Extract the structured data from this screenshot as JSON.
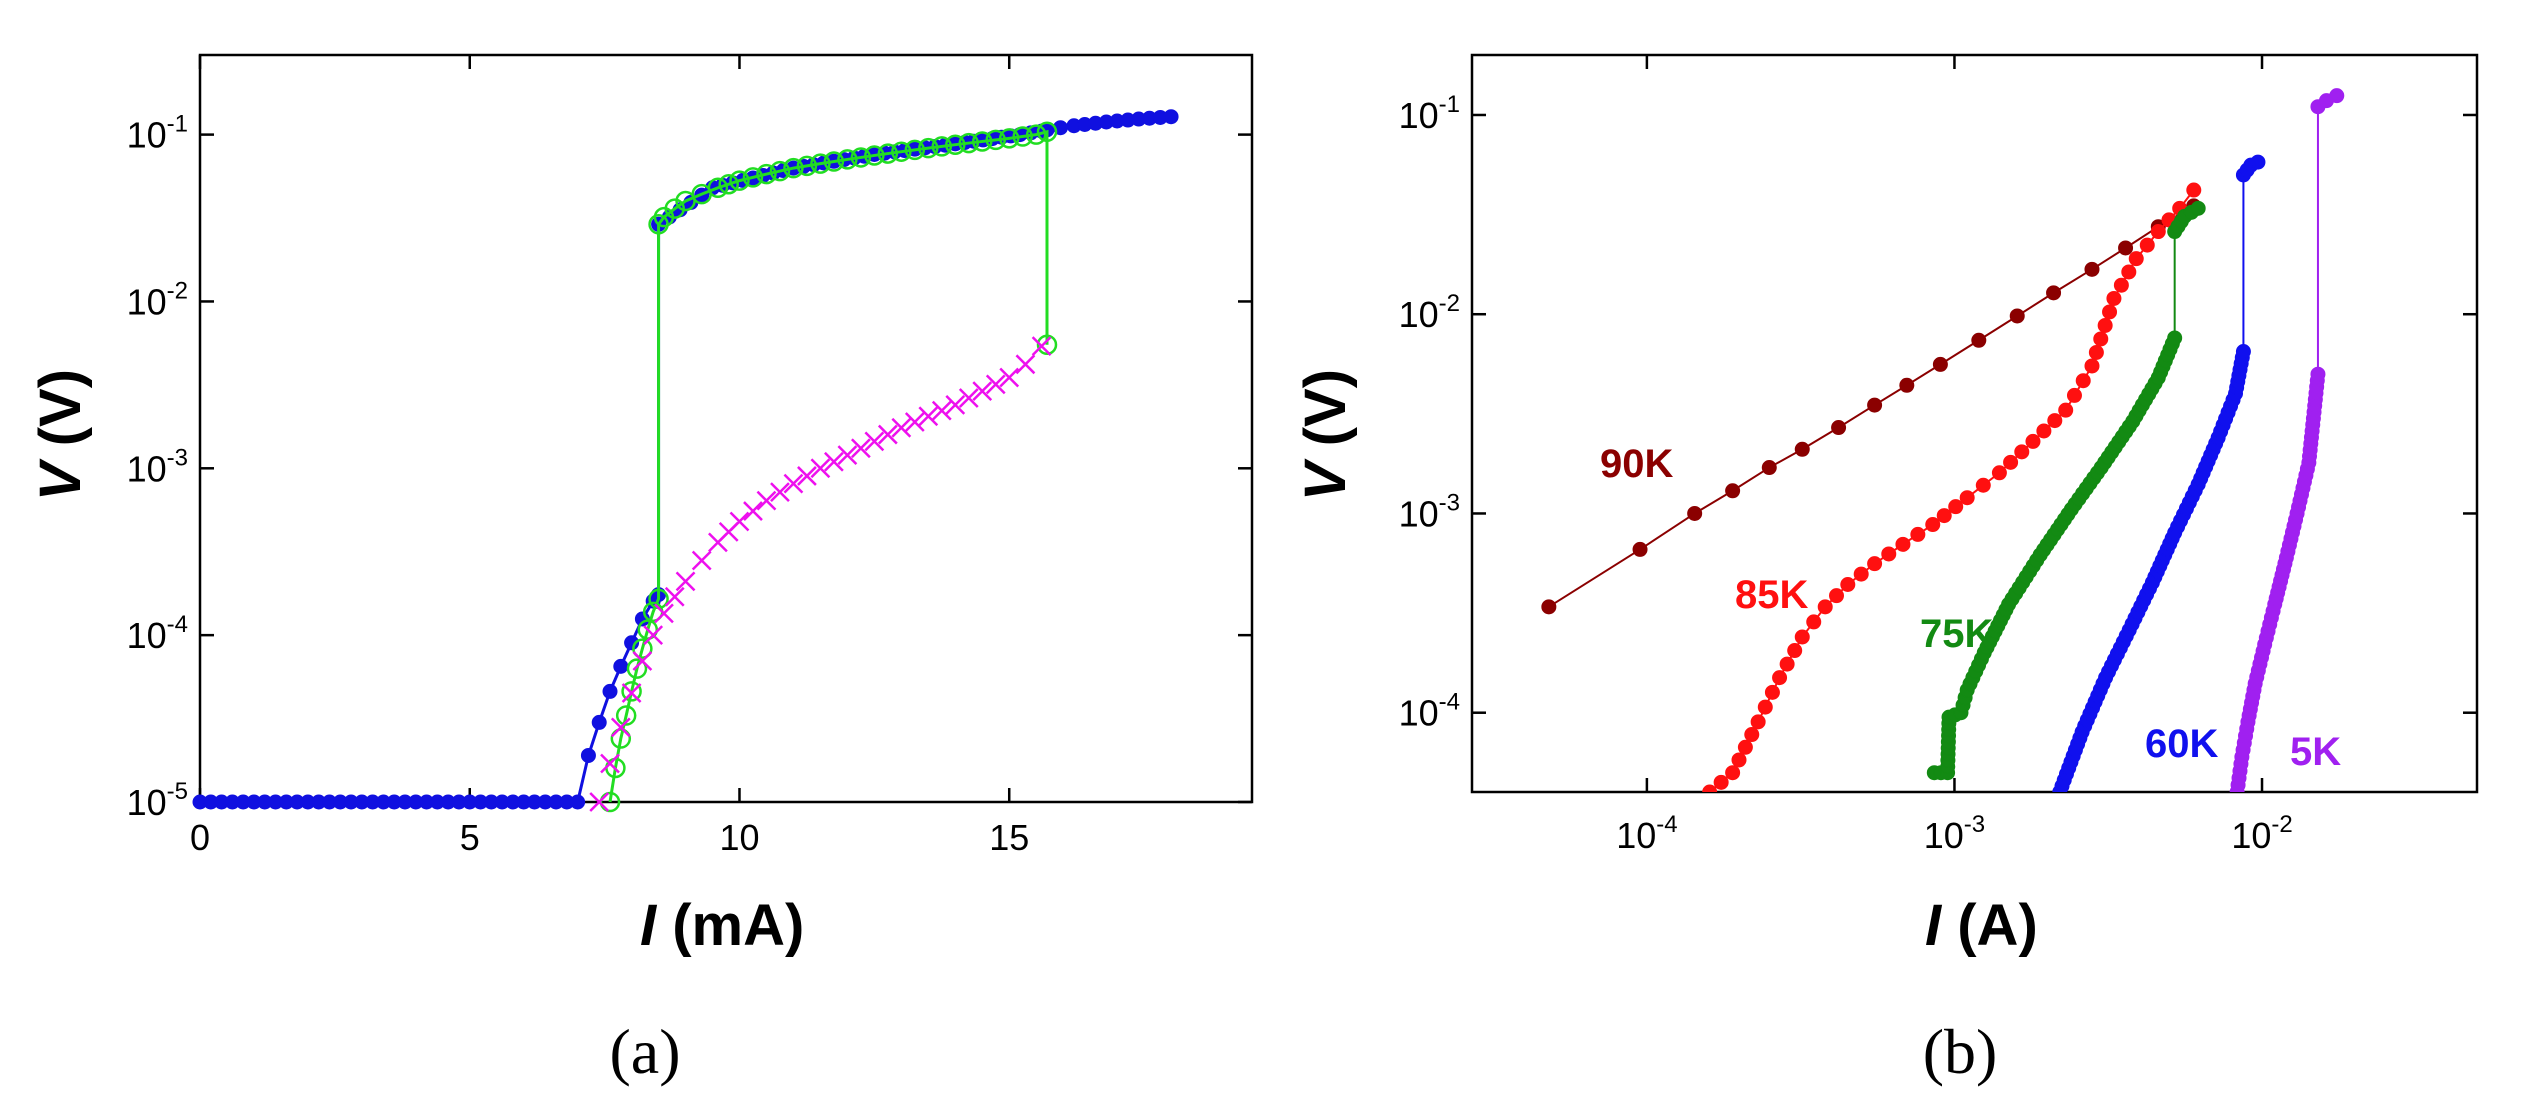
{
  "chart_data": [
    {
      "panel_label": "(a)",
      "type": "scatter",
      "xlabel": {
        "var": "I",
        "unit": " (mA)"
      },
      "ylabel": {
        "var": "V",
        "unit": " (V)"
      },
      "xscale": "linear",
      "yscale": "log",
      "xlim": [
        0,
        19.5
      ],
      "ylim": [
        1e-05,
        0.3
      ],
      "xticks": [
        "0",
        "5",
        "10",
        "15"
      ],
      "xtick_values": [
        0,
        5,
        10,
        15
      ],
      "yticks": [
        {
          "base": "10",
          "exp": "-5",
          "value": 1e-05
        },
        {
          "base": "10",
          "exp": "-4",
          "value": 0.0001
        },
        {
          "base": "10",
          "exp": "-3",
          "value": 0.001
        },
        {
          "base": "10",
          "exp": "-2",
          "value": 0.01
        },
        {
          "base": "10",
          "exp": "-1",
          "value": 0.1
        }
      ],
      "grid": false,
      "colors": {
        "blue": "#1010e0",
        "green": "#22dd22",
        "magenta": "#ee10ee"
      },
      "series": [
        {
          "color": "#1010e0",
          "marker": "filled-circle",
          "connected": true,
          "x": [
            0,
            1,
            2,
            3,
            4,
            5,
            6,
            7,
            7.2,
            7.4,
            7.6,
            7.8,
            8.0,
            8.2,
            8.4,
            8.5,
            8.5,
            9.5,
            11,
            12.5,
            14,
            15.2,
            15.6,
            15.7,
            15.7,
            16.2,
            16.8,
            17.4,
            18.0
          ],
          "y": [
            1e-05,
            1e-05,
            1e-05,
            1e-05,
            1e-05,
            1e-05,
            1e-05,
            1e-05,
            1.9e-05,
            3e-05,
            4.6e-05,
            6.5e-05,
            9e-05,
            0.000125,
            0.00016,
            0.000175,
            0.029,
            0.048,
            0.063,
            0.076,
            0.088,
            0.1,
            0.105,
            0.107,
            0.107,
            0.113,
            0.119,
            0.124,
            0.128
          ]
        },
        {
          "color": "#22dd22",
          "marker": "open-circle",
          "connected": true,
          "x": [
            7.6,
            7.7,
            7.8,
            7.9,
            8.0,
            8.1,
            8.2,
            8.3,
            8.4,
            8.5,
            8.5,
            8.6,
            8.8,
            9.0,
            9.3,
            9.6,
            10.0,
            10.5,
            11,
            11.5,
            12,
            12.5,
            13,
            13.5,
            14,
            14.5,
            15,
            15.5,
            15.7,
            15.7
          ],
          "y": [
            1e-05,
            1.6e-05,
            2.4e-05,
            3.3e-05,
            4.6e-05,
            6.3e-05,
            8.3e-05,
            0.000108,
            0.000138,
            0.000165,
            0.029,
            0.032,
            0.036,
            0.04,
            0.044,
            0.048,
            0.053,
            0.058,
            0.063,
            0.067,
            0.071,
            0.075,
            0.079,
            0.083,
            0.087,
            0.091,
            0.095,
            0.1,
            0.104,
            0.0055
          ]
        },
        {
          "color": "#ee10ee",
          "marker": "cross",
          "connected": false,
          "x": [
            7.4,
            7.6,
            7.8,
            8.0,
            8.2,
            8.4,
            8.6,
            8.8,
            9.0,
            9.3,
            9.6,
            10.0,
            10.5,
            11,
            11.5,
            12,
            12.5,
            13,
            13.5,
            14,
            14.5,
            15,
            15.3,
            15.6
          ],
          "y": [
            1e-05,
            1.7e-05,
            2.8e-05,
            4.5e-05,
            7e-05,
            0.0001,
            0.000135,
            0.00017,
            0.00021,
            0.00028,
            0.00036,
            0.00048,
            0.00064,
            0.00081,
            0.001,
            0.0012,
            0.00145,
            0.00175,
            0.00205,
            0.0024,
            0.0029,
            0.0035,
            0.0042,
            0.0054
          ]
        }
      ]
    },
    {
      "panel_label": "(b)",
      "type": "scatter",
      "xlabel": {
        "var": "I",
        "unit": " (A)"
      },
      "ylabel": {
        "var": "V",
        "unit": " (V)"
      },
      "xscale": "log",
      "yscale": "log",
      "xlim": [
        2.7e-05,
        0.05
      ],
      "ylim": [
        4e-05,
        0.2
      ],
      "xticks": [
        {
          "base": "10",
          "exp": "-4",
          "value": 0.0001
        },
        {
          "base": "10",
          "exp": "-3",
          "value": 0.001
        },
        {
          "base": "10",
          "exp": "-2",
          "value": 0.01
        }
      ],
      "yticks": [
        {
          "base": "10",
          "exp": "-4",
          "value": 0.0001
        },
        {
          "base": "10",
          "exp": "-3",
          "value": 0.001
        },
        {
          "base": "10",
          "exp": "-2",
          "value": 0.01
        },
        {
          "base": "10",
          "exp": "-1",
          "value": 0.1
        }
      ],
      "grid": false,
      "series": [
        {
          "color": "#8b0000",
          "marker": "filled-circle",
          "label": "90K",
          "x": [
            4.8e-05,
            9.5e-05,
            0.000143,
            0.00019,
            0.00025,
            0.00032,
            0.00042,
            0.00055,
            0.0007,
            0.0009,
            0.0012,
            0.0016,
            0.0021,
            0.0028,
            0.0036,
            0.0046,
            0.006
          ],
          "y": [
            0.00034,
            0.00066,
            0.001,
            0.0013,
            0.0017,
            0.0021,
            0.0027,
            0.0035,
            0.0044,
            0.0056,
            0.0074,
            0.0098,
            0.0128,
            0.0168,
            0.0215,
            0.0275,
            0.035
          ]
        },
        {
          "color": "#ff1010",
          "marker": "filled-circle",
          "label": "85K",
          "x": [
            0.00016,
            0.00019,
            0.00023,
            0.00027,
            0.00032,
            0.00038,
            0.00045,
            0.00055,
            0.00068,
            0.00085,
            0.0011,
            0.0014,
            0.0018,
            0.0023,
            0.0028,
            0.0033,
            0.0039,
            0.0046,
            0.0054,
            0.006
          ],
          "y": [
            4e-05,
            5e-05,
            9e-05,
            0.00015,
            0.00024,
            0.00034,
            0.00044,
            0.00056,
            0.0007,
            0.00088,
            0.0012,
            0.0016,
            0.0023,
            0.0033,
            0.0055,
            0.012,
            0.019,
            0.026,
            0.034,
            0.042
          ]
        },
        {
          "color": "#138a13",
          "marker": "filled-circle",
          "label": "75K",
          "x": [
            0.00086,
            0.00095,
            0.00096,
            0.00105,
            0.0011,
            0.00125,
            0.0015,
            0.0019,
            0.0024,
            0.003,
            0.0038,
            0.0046,
            0.0052,
            0.0052,
            0.0056,
            0.0062
          ],
          "y": [
            5e-05,
            5e-05,
            9.5e-05,
            0.0001,
            0.00013,
            0.0002,
            0.00035,
            0.00062,
            0.00105,
            0.0017,
            0.0029,
            0.0048,
            0.0076,
            0.026,
            0.031,
            0.034
          ]
        },
        {
          "color": "#1010ee",
          "marker": "filled-circle",
          "label": "60K",
          "x": [
            0.0022,
            0.0026,
            0.0031,
            0.0037,
            0.0044,
            0.0052,
            0.0062,
            0.0072,
            0.0082,
            0.0087,
            0.0087,
            0.0092,
            0.0097
          ],
          "y": [
            4e-05,
            8e-05,
            0.00015,
            0.00026,
            0.00045,
            0.0008,
            0.0014,
            0.0024,
            0.004,
            0.0065,
            0.05,
            0.056,
            0.058
          ]
        },
        {
          "color": "#a020f0",
          "marker": "filled-circle",
          "label": "5K",
          "x": [
            0.0083,
            0.0086,
            0.009,
            0.0095,
            0.0102,
            0.011,
            0.012,
            0.013,
            0.0142,
            0.0152,
            0.0152,
            0.0162,
            0.0175
          ],
          "y": [
            4e-05,
            6e-05,
            9e-05,
            0.00014,
            0.00022,
            0.00035,
            0.0006,
            0.001,
            0.0018,
            0.005,
            0.11,
            0.118,
            0.125
          ]
        }
      ]
    }
  ]
}
